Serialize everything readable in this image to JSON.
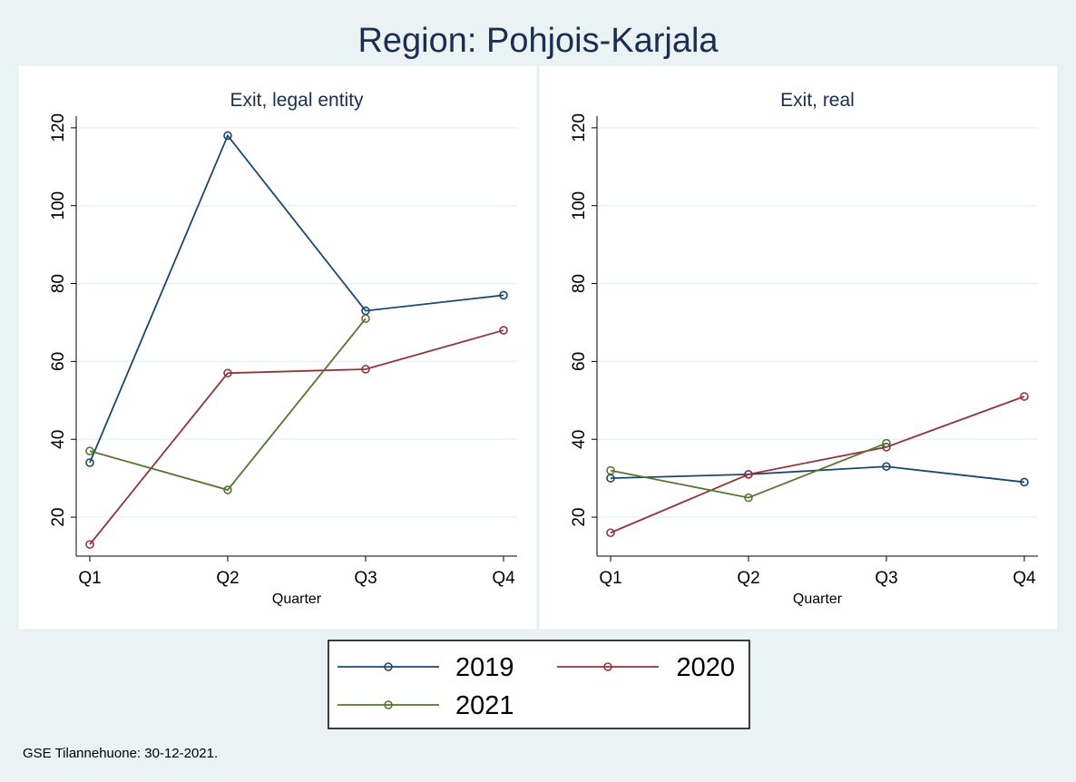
{
  "title": "Region: Pohjois-Karjala",
  "note": "GSE Tilannehuone: 30-12-2021.",
  "chart_data": [
    {
      "type": "line",
      "title": "Exit, legal entity",
      "xlabel": "Quarter",
      "ylabel": "",
      "categories": [
        "Q1",
        "Q2",
        "Q3",
        "Q4"
      ],
      "yticks": [
        20,
        40,
        60,
        80,
        100,
        120
      ],
      "ylim": [
        10,
        123
      ],
      "grid": true,
      "legend": "bottom",
      "series": [
        {
          "name": "2019",
          "color": "#1a476f",
          "values": [
            34,
            118,
            73,
            77
          ]
        },
        {
          "name": "2020",
          "color": "#90353b",
          "values": [
            13,
            57,
            58,
            68
          ]
        },
        {
          "name": "2021",
          "color": "#55752f",
          "values": [
            37,
            27,
            71,
            null
          ]
        }
      ]
    },
    {
      "type": "line",
      "title": "Exit, real",
      "xlabel": "Quarter",
      "ylabel": "",
      "categories": [
        "Q1",
        "Q2",
        "Q3",
        "Q4"
      ],
      "yticks": [
        20,
        40,
        60,
        80,
        100,
        120
      ],
      "ylim": [
        10,
        123
      ],
      "grid": true,
      "legend": "bottom",
      "series": [
        {
          "name": "2019",
          "color": "#1a476f",
          "values": [
            30,
            31,
            33,
            29
          ]
        },
        {
          "name": "2020",
          "color": "#90353b",
          "values": [
            16,
            31,
            38,
            51
          ]
        },
        {
          "name": "2021",
          "color": "#55752f",
          "values": [
            32,
            25,
            39,
            null
          ]
        }
      ]
    }
  ],
  "legend": {
    "items": [
      {
        "label": "2019",
        "color": "#1a476f"
      },
      {
        "label": "2020",
        "color": "#90353b"
      },
      {
        "label": "2021",
        "color": "#55752f"
      }
    ]
  }
}
